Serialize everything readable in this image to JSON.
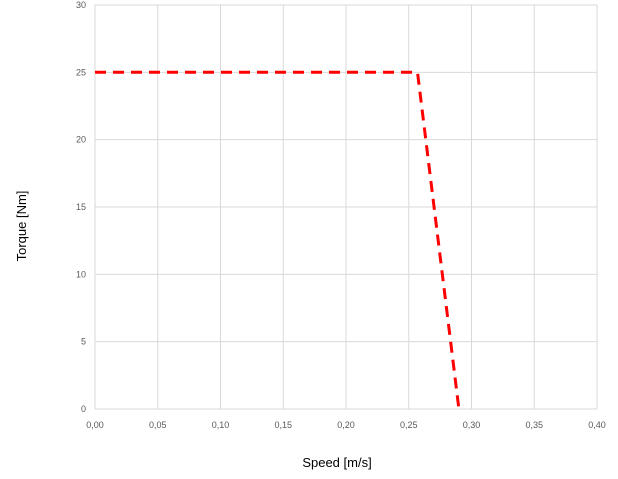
{
  "chart_data": {
    "type": "line",
    "title": "",
    "xlabel": "Speed [m/s]",
    "ylabel": "Torque [Nm]",
    "xlim": [
      0,
      0.4
    ],
    "ylim": [
      0,
      30
    ],
    "x_ticks": [
      0,
      0.05,
      0.1,
      0.15,
      0.2,
      0.25,
      0.3,
      0.35,
      0.4
    ],
    "x_tick_labels": [
      "0,00",
      "0,05",
      "0,10",
      "0,15",
      "0,20",
      "0,25",
      "0,30",
      "0,35",
      "0,40"
    ],
    "y_ticks": [
      0,
      5,
      10,
      15,
      20,
      25,
      30
    ],
    "y_tick_labels": [
      "0",
      "5",
      "10",
      "15",
      "20",
      "25",
      "30"
    ],
    "grid": true,
    "legend": "none",
    "series": [
      {
        "color": "#ff0000",
        "style": "dashed",
        "x": [
          0,
          0.257,
          0.29
        ],
        "y": [
          25,
          25,
          0
        ]
      }
    ]
  }
}
